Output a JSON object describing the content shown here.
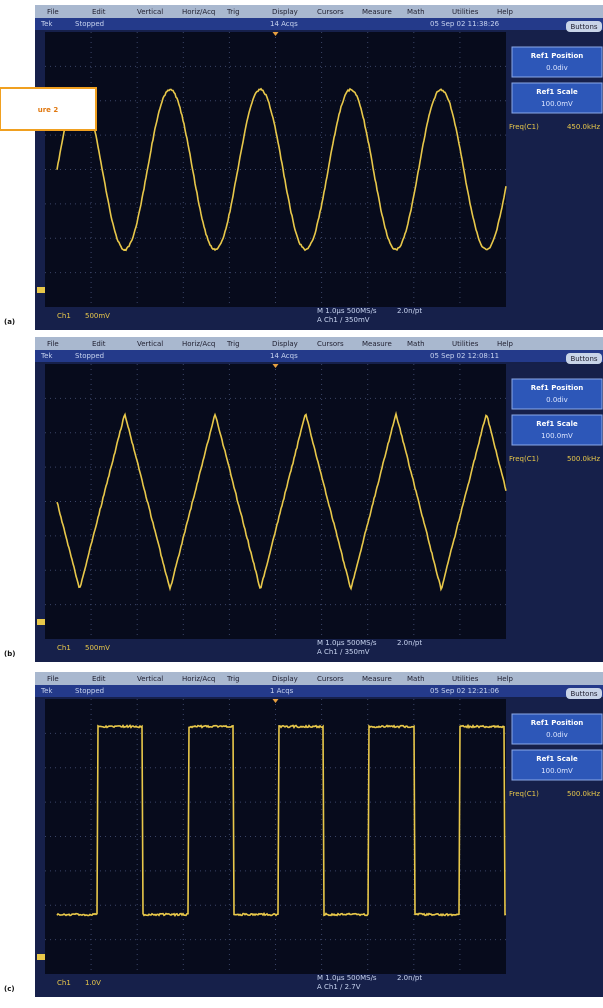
{
  "figure_label": "ure 2",
  "menu": [
    "File",
    "Edit",
    "Vertical",
    "Horiz/Acq",
    "Trig",
    "Display",
    "Cursors",
    "Measure",
    "Math",
    "Utilities",
    "Help"
  ],
  "panels": [
    {
      "label": "(a)",
      "waveform": "sine",
      "status": {
        "scope": "Tek",
        "state": "Stopped",
        "acqs": "14 Acqs",
        "timestamp": "05 Sep 02 11:38:26"
      },
      "side": {
        "button": "Buttons",
        "position_title": "Ref1 Position",
        "position_value": "0.0div",
        "scale_title": "Ref1 Scale",
        "scale_value": "100.0mV",
        "meas_name": "Freq(C1)",
        "meas_value": "450.0kHz"
      },
      "readout": {
        "channel": "Ch1",
        "volts": "500mV",
        "timebase": "M 1.0µs 500MS/s",
        "trigger": "A Ch1 / 350mV",
        "record": "2.0n/pt"
      }
    },
    {
      "label": "(b)",
      "waveform": "triangle",
      "status": {
        "scope": "Tek",
        "state": "Stopped",
        "acqs": "14 Acqs",
        "timestamp": "05 Sep 02 12:08:11"
      },
      "side": {
        "button": "Buttons",
        "position_title": "Ref1 Position",
        "position_value": "0.0div",
        "scale_title": "Ref1 Scale",
        "scale_value": "100.0mV",
        "meas_name": "Freq(C1)",
        "meas_value": "500.0kHz"
      },
      "readout": {
        "channel": "Ch1",
        "volts": "500mV",
        "timebase": "M 1.0µs 500MS/s",
        "trigger": "A Ch1 / 350mV",
        "record": "2.0n/pt"
      }
    },
    {
      "label": "(c)",
      "waveform": "square",
      "status": {
        "scope": "Tek",
        "state": "Stopped",
        "acqs": "1 Acqs",
        "timestamp": "05 Sep 02 12:21:06"
      },
      "side": {
        "button": "Buttons",
        "position_title": "Ref1 Position",
        "position_value": "0.0div",
        "scale_title": "Ref1 Scale",
        "scale_value": "100.0mV",
        "meas_name": "Freq(C1)",
        "meas_value": "500.0kHz"
      },
      "readout": {
        "channel": "Ch1",
        "volts": "1.0V",
        "timebase": "M 1.0µs 500MS/s",
        "trigger": "A Ch1 / 2.7V",
        "record": "2.0n/pt"
      }
    }
  ]
}
